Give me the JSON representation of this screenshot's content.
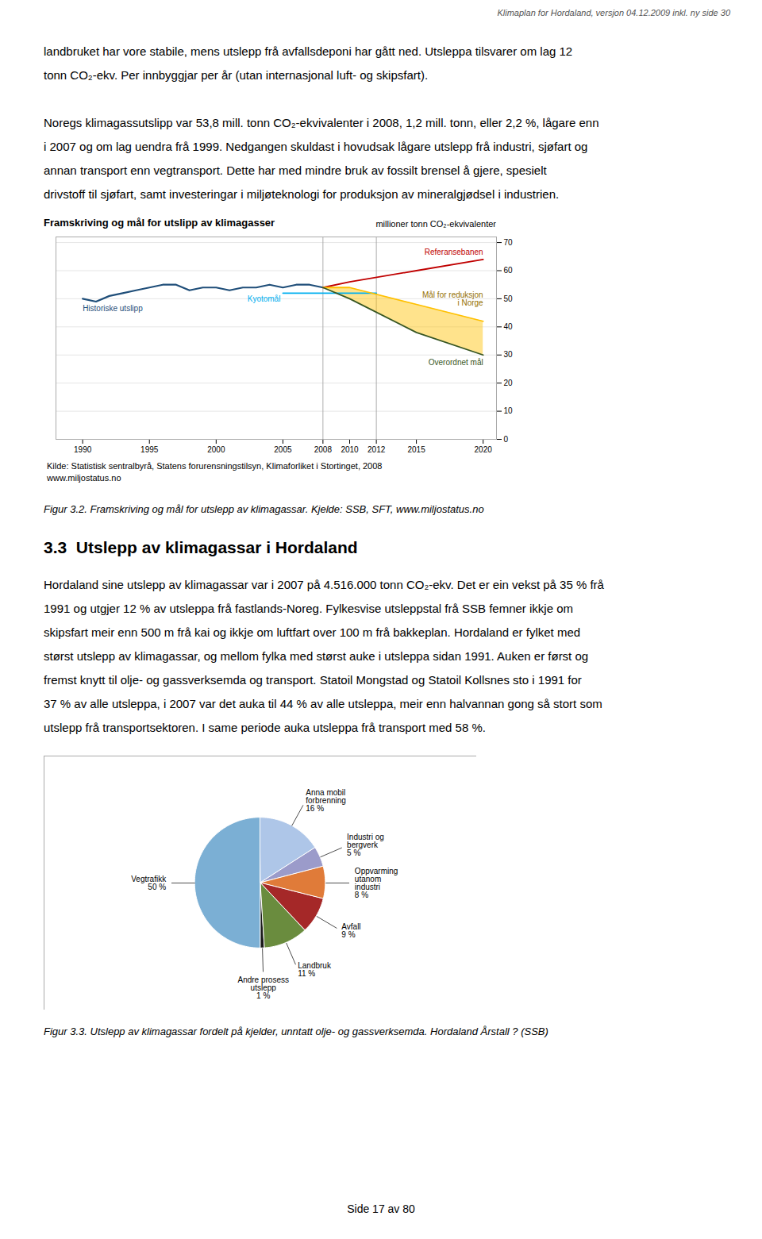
{
  "page": {
    "header": "Klimaplan for Hordaland, versjon 04.12.2009 inkl. ny side 30",
    "paragraphs_before": [
      [
        "landbruket har vore stabile, mens utslepp frå avfallsdeponi har gått ned. Utsleppa tilsvarer om lag 12",
        "tonn CO₂-ekv. Per innbyggjar per år (utan internasjonal luft- og skipsfart)."
      ],
      [
        "Noregs klimagassutslipp var 53,8 mill. tonn CO₂-ekvivalenter i 2008, 1,2 mill. tonn, eller 2,2 %, lågare enn",
        "i 2007 og om lag uendra frå 1999. Nedgangen skuldast i hovudsak lågare utslepp frå industri, sjøfart og",
        "annan transport enn vegtransport. Dette har med mindre bruk av fossilt brensel å gjere, spesielt",
        "drivstoff til sjøfart, samt investeringar i miljøteknologi for produksjon av mineralgjødsel i industrien."
      ]
    ],
    "caption_1": "Figur 3.2. Framskriving og mål for utslepp av klimagassar. Kjelde: SSB, SFT, www.miljostatus.no",
    "heading": "3.3  Utslepp av klimagassar i Hordaland",
    "paragraph_between": [
      "Hordaland sine utslepp av klimagassar var i 2007 på 4.516.000 tonn CO₂-ekv. Det er ein vekst på 35 % frå",
      "1991 og utgjer 12 % av utsleppa frå fastlands-Noreg. Fylkesvise utsleppstal frå SSB femner ikkje om",
      "skipsfart meir enn 500 m frå kai og ikkje om luftfart over 100 m frå bakkeplan. Hordaland er fylket med",
      "størst utslepp av klimagassar, og mellom fylka med størst auke i utsleppa sidan 1991. Auken er først og",
      "fremst knytt til olje- og gassverksemda og transport. Statoil Mongstad og Statoil Kollsnes sto i 1991 for",
      "37 % av alle utsleppa, i 2007 var det auka til 44 % av alle utsleppa, meir enn halvannan gong så stort som",
      "utslepp frå transportsektoren. I same periode auka utsleppa frå transport med 58 %."
    ],
    "caption_2": "Figur 3.3. Utslepp av klimagassar fordelt på kjelder, unntatt olje- og gassverksemda. Hordaland Årstall ? (SSB)",
    "footer": "Side 17 av 80"
  },
  "chart_data": [
    {
      "type": "line",
      "title": "Framskriving og mål for utslipp av klimagasser",
      "ylabel": "millioner tonn CO₂-ekvivalenter",
      "source": "Kilde: Statistisk sentralbyrå, Statens forurensningstilsyn, Klimaforliket i Stortinget, 2008\nwww.miljostatus.no",
      "xlim": [
        1988,
        2021
      ],
      "ylim": [
        0,
        72
      ],
      "xticks": [
        1990,
        1995,
        2000,
        2005,
        2008,
        2010,
        2012,
        2015,
        2020
      ],
      "yticks": [
        0,
        10,
        20,
        30,
        40,
        50,
        60,
        70
      ],
      "grid": true,
      "vlines": [
        2008,
        2012
      ],
      "series": [
        {
          "name": "Historiske utslipp",
          "color": "#1f4e79",
          "x": [
            1990,
            1991,
            1992,
            1993,
            1994,
            1995,
            1996,
            1997,
            1998,
            1999,
            2000,
            2001,
            2002,
            2003,
            2004,
            2005,
            2006,
            2007,
            2008
          ],
          "values": [
            50,
            49,
            51,
            52,
            53,
            54,
            55,
            55,
            53,
            54,
            54,
            53,
            54,
            54,
            55,
            54,
            55,
            55,
            54
          ]
        },
        {
          "name": "Referansebanen",
          "color": "#c00000",
          "x": [
            2008,
            2010,
            2015,
            2020
          ],
          "values": [
            54,
            56,
            60,
            64
          ]
        },
        {
          "name": "Kyotomål",
          "color": "#00b0f0",
          "x": [
            2005,
            2008,
            2012
          ],
          "values": [
            52,
            52,
            52
          ]
        },
        {
          "name": "Mål for reduksjon\ni Norge",
          "color": "#ffc000",
          "x": [
            2008,
            2010,
            2015,
            2020
          ],
          "values": [
            54,
            54,
            48,
            42
          ]
        },
        {
          "name": "Overordnet mål",
          "color": "#375623",
          "x": [
            2008,
            2010,
            2015,
            2020
          ],
          "values": [
            54,
            50,
            38,
            30
          ]
        }
      ]
    },
    {
      "type": "pie",
      "categories": [
        "Anna mobil\nforbrenning",
        "Industri og\nbergverk",
        "Oppvarming\nutanom\nindustri",
        "Avfall",
        "Landbruk",
        "Andre prosess\nutslepp",
        "Vegtrafikk"
      ],
      "values": [
        16,
        5,
        8,
        9,
        11,
        1,
        50
      ],
      "value_labels": [
        "16 %",
        "5 %",
        "8 %",
        "9 %",
        "11 %",
        "1 %",
        "50 %"
      ],
      "colors": [
        "#aec6e8",
        "#9b9bca",
        "#e07b39",
        "#a52828",
        "#6a8c3e",
        "#1a1a1a",
        "#7bafd4"
      ],
      "data_labels": true
    }
  ]
}
